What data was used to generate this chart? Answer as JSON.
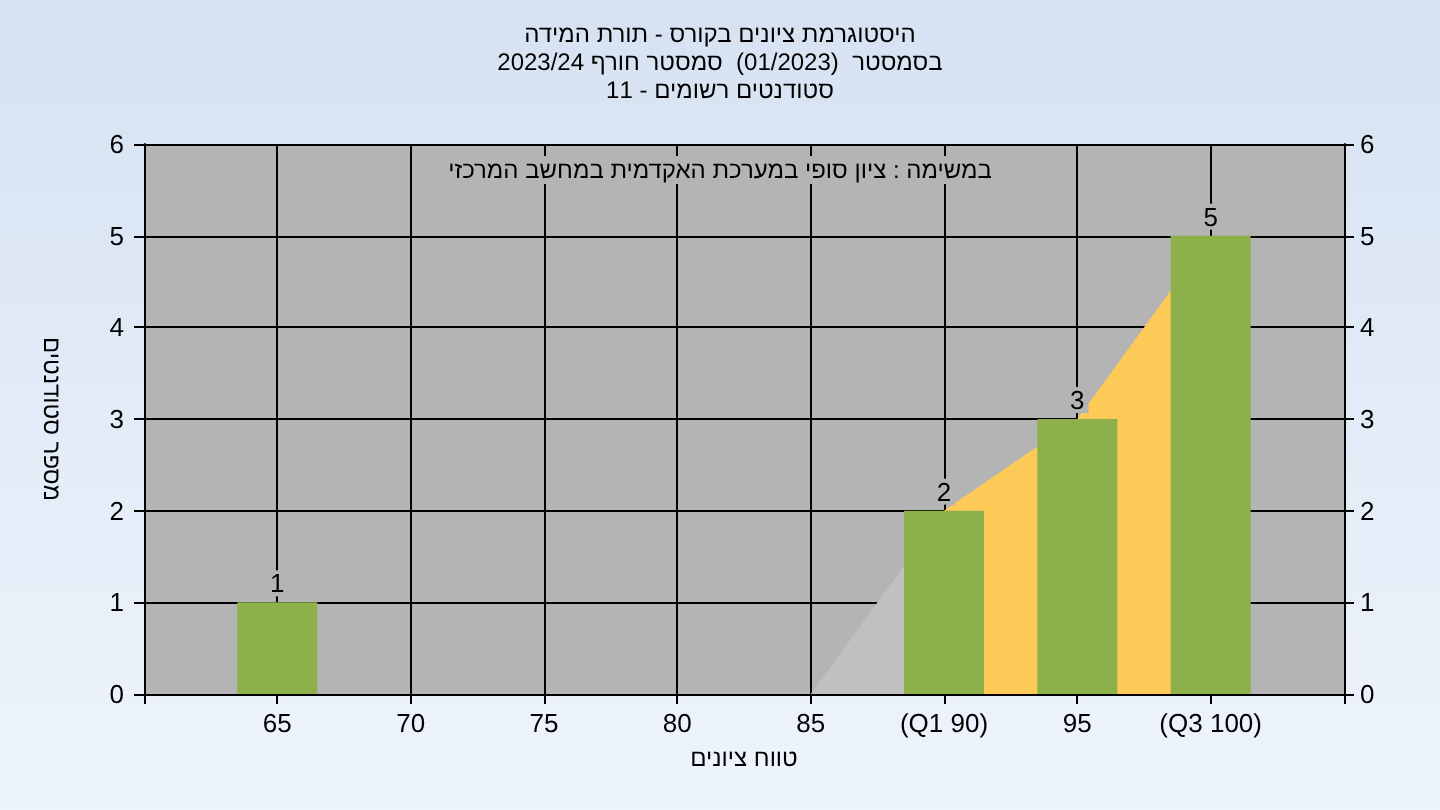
{
  "chart_data": {
    "type": "bar",
    "title": "היסטוגרמת ציונים בקורס - תורת המידה",
    "subtitle": "בסמסטר  (01/2023)  סמסטר חורף 2023/24\nסטודנטים רשומים - 11",
    "xlabel": "טווח ציונים",
    "ylabel": "מספר סטודנטים",
    "annotations": [
      "במשימה : ציון סופי במערכת האקדמית במחשב המרכזי"
    ],
    "series": [
      {
        "type": "area",
        "x": [
          85,
          90
        ],
        "values": [
          0,
          2
        ],
        "color": "#c0c0c0"
      },
      {
        "type": "area",
        "x": [
          90,
          95,
          100
        ],
        "values": [
          2,
          3,
          5
        ],
        "color": "#fdca57"
      },
      {
        "x": [
          65,
          90,
          95,
          100
        ],
        "values": [
          1,
          2,
          3,
          5
        ],
        "color": "#8db04a",
        "value_labels": [
          "1",
          "2",
          "3",
          "5"
        ]
      }
    ],
    "xlim": [
      60,
      105
    ],
    "xticks": [
      {
        "value": 60,
        "label": null
      },
      65,
      70,
      75,
      80,
      85,
      {
        "value": 90,
        "label": "(Q1 90)"
      },
      95,
      {
        "value": 100,
        "label": "(Q3 100)"
      },
      {
        "value": 105,
        "label": null
      }
    ],
    "ylim": [
      0,
      6
    ],
    "yticks": [
      0,
      1,
      2,
      3,
      4,
      5,
      6
    ],
    "y2lim": [
      0,
      6
    ],
    "y2ticks": [
      0,
      1,
      2,
      3,
      4,
      5,
      6
    ],
    "grid": true
  }
}
